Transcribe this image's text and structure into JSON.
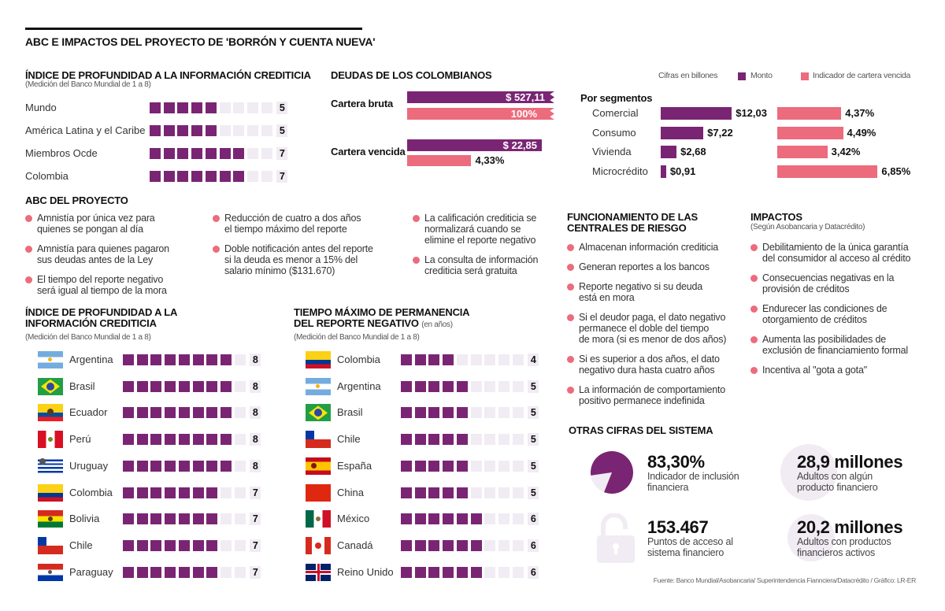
{
  "title": "ABC E IMPACTOS DEL PROYECTO DE 'BORRÓN Y CUENTA NUEVA'",
  "colors": {
    "monto": "#7a2574",
    "indicador": "#ec6b7c",
    "empty": "#f1ebf3",
    "bullet": "#ec6b7c"
  },
  "legend": {
    "note": "Cifras en billones",
    "monto": "Monto",
    "indicador": "Indicador de cartera vencida"
  },
  "chart_data": [
    {
      "type": "bar",
      "title": "ÍNDICE DE PROFUNDIDAD A LA INFORMACIÓN CREDITICIA",
      "subtitle": "(Medición del Banco Mundial de 1 a 8)",
      "categories": [
        "Mundo",
        "América Latina y el Caribe",
        "Miembros Ocde",
        "Colombia"
      ],
      "values": [
        5,
        5,
        7,
        7
      ]
    },
    {
      "type": "bar",
      "title": "DEUDAS DE LOS COLOMBIANOS",
      "categories": [
        "Cartera bruta",
        "Cartera vencida"
      ],
      "series": [
        {
          "name": "Monto",
          "values": [
            527.11,
            22.85
          ],
          "labels": [
            "$ 527,11",
            "$ 22,85"
          ]
        },
        {
          "name": "Indicador de cartera vencida",
          "values": [
            100,
            4.33
          ],
          "labels": [
            "100%",
            "4,33%"
          ]
        }
      ]
    },
    {
      "type": "bar",
      "title": "Por segmentos",
      "categories": [
        "Comercial",
        "Consumo",
        "Vivienda",
        "Microcrédito"
      ],
      "series": [
        {
          "name": "Monto",
          "values": [
            12.03,
            7.22,
            2.68,
            0.91
          ],
          "labels": [
            "$12,03",
            "$7,22",
            "$2,68",
            "$0,91"
          ]
        },
        {
          "name": "Indicador de cartera vencida",
          "values": [
            4.37,
            4.49,
            3.42,
            6.85
          ],
          "labels": [
            "4,37%",
            "4,49%",
            "3,42%",
            "6,85%"
          ]
        }
      ]
    },
    {
      "type": "bar",
      "title": "ÍNDICE DE PROFUNDIDAD A LA INFORMACIÓN CREDITICIA",
      "subtitle": "(Medición del Banco Mundial de 1 a 8)",
      "categories": [
        "Argentina",
        "Brasil",
        "Ecuador",
        "Perú",
        "Uruguay",
        "Colombia",
        "Bolivia",
        "Chile",
        "Paraguay"
      ],
      "icons": [
        "flag-argentina",
        "flag-brasil",
        "flag-ecuador",
        "flag-peru",
        "flag-uruguay",
        "flag-colombia",
        "flag-bolivia",
        "flag-chile",
        "flag-paraguay"
      ],
      "values": [
        8,
        8,
        8,
        8,
        8,
        7,
        7,
        7,
        7
      ]
    },
    {
      "type": "bar",
      "title": "TIEMPO MÁXIMO DE PERMANENCIA DEL REPORTE NEGATIVO",
      "unit": "(en años)",
      "subtitle": "(Medición del Banco Mundial de 1 a 8)",
      "categories": [
        "Colombia",
        "Argentina",
        "Brasil",
        "Chile",
        "España",
        "China",
        "México",
        "Canadá",
        "Reino Unido"
      ],
      "icons": [
        "flag-colombia",
        "flag-argentina",
        "flag-brasil",
        "flag-chile",
        "flag-espana",
        "flag-china",
        "flag-mexico",
        "flag-canada",
        "flag-reino-unido"
      ],
      "values": [
        4,
        5,
        5,
        5,
        5,
        5,
        6,
        6,
        6
      ]
    },
    {
      "type": "pie",
      "categories": [
        "Indicador de inclusión financiera"
      ],
      "values": [
        83.3
      ]
    }
  ],
  "abc": {
    "title": "ABC DEL PROYECTO",
    "columns": [
      [
        [
          "Amnistía por única vez para",
          "quienes se pongan al día"
        ],
        [
          "Amnistía para quienes pagaron",
          "sus deudas antes de la Ley"
        ],
        [
          "El tiempo del reporte negativo",
          "será igual al tiempo de la mora"
        ]
      ],
      [
        [
          "Reducción de cuatro a dos años",
          "el tiempo máximo del reporte"
        ],
        [
          "Doble notificación antes del reporte",
          "si la deuda es menor a 15% del",
          "salario mínimo ($131.670)"
        ]
      ],
      [
        [
          "La calificación crediticia se",
          "normalizará  cuando se",
          "elimine el reporte negativo"
        ],
        [
          "La consulta de información",
          "crediticia será gratuita"
        ]
      ]
    ]
  },
  "funcionamiento": {
    "title": [
      "FUNCIONAMIENTO DE LAS",
      "CENTRALES DE RIESGO"
    ],
    "items": [
      [
        "Almacenan información crediticia"
      ],
      [
        "Generan reportes a los bancos"
      ],
      [
        "Reporte negativo si su deuda",
        "está en mora"
      ],
      [
        "Si el deudor paga, el dato negativo",
        "permanece el doble del tiempo",
        "de mora (si es menor de dos años)"
      ],
      [
        "Si es superior a dos años, el dato",
        "negativo dura hasta cuatro años"
      ],
      [
        "La información de comportamiento",
        "positivo permanece indefinida"
      ]
    ]
  },
  "impactos": {
    "title": "IMPACTOS",
    "subtitle": "(Según Asobancaria y Datacrédito)",
    "items": [
      [
        "Debilitamiento de la única garantía",
        "del consumidor al acceso al crédito"
      ],
      [
        "Consecuencias negativas en la",
        "provisión de créditos"
      ],
      [
        "Endurecer las condiciones de",
        "otorgamiento de créditos"
      ],
      [
        "Aumenta las posibilidades de",
        "exclusión de financiamiento formal"
      ],
      [
        "Incentiva al \"gota a gota\""
      ]
    ]
  },
  "otras": {
    "title": "OTRAS CIFRAS DEL SISTEMA",
    "stats": [
      {
        "value": "83,30%",
        "desc": [
          "Indicador de inclusión",
          "financiera"
        ],
        "icon": "pie-icon"
      },
      {
        "value": "28,9 millones",
        "desc": [
          "Adultos con algún",
          "producto financiero"
        ],
        "icon": "circle-icon"
      },
      {
        "value": "153.467",
        "desc": [
          "Puntos de acceso al",
          "sistema financiero"
        ],
        "icon": "lock-icon"
      },
      {
        "value": "20,2 millones",
        "desc": [
          "Adultos con productos",
          "financieros activos"
        ],
        "icon": "circle-icon"
      }
    ]
  },
  "source": "Fuente: Banco Mundial/Asobancaria/ Superintendencia Fiannciera/Datacrédito / Gráfico: LR-ER"
}
